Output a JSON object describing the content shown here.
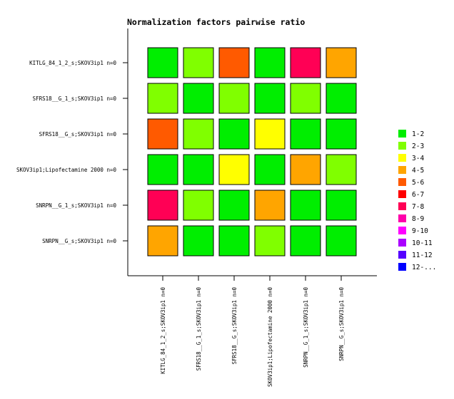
{
  "chart_data": {
    "type": "heatmap",
    "title": "Normalization factors pairwise ratio",
    "rows": [
      "KITLG_84_1_2_s;SKOV3ip1 n=0",
      "SFRS18__G_1_s;SKOV3ip1 n=0",
      "SFRS18__G_s;SKOV3ip1 n=0",
      "SKOV3ip1;Lipofectamine 2000 n=0",
      "SNRPN__G_1_s;SKOV3ip1 n=0",
      "SNRPN__G_s;SKOV3ip1 n=0"
    ],
    "columns": [
      "KITLG_84_1_2_s;SKOV3ip1 n=0",
      "SFRS18__G_1_s;SKOV3ip1 n=0",
      "SFRS18__G_s;SKOV3ip1 n=0",
      "SKOV3ip1;Lipofectamine 2000 n=0",
      "SNRPN__G_1_s;SKOV3ip1 n=0",
      "SNRPN__G_s;SKOV3ip1 n=0"
    ],
    "cells": [
      [
        "1-2",
        "2-3",
        "5-6",
        "1-2",
        "7-8",
        "4-5"
      ],
      [
        "2-3",
        "1-2",
        "2-3",
        "1-2",
        "2-3",
        "1-2"
      ],
      [
        "5-6",
        "2-3",
        "1-2",
        "3-4",
        "1-2",
        "1-2"
      ],
      [
        "1-2",
        "1-2",
        "3-4",
        "1-2",
        "4-5",
        "2-3"
      ],
      [
        "7-8",
        "2-3",
        "1-2",
        "4-5",
        "1-2",
        "1-2"
      ],
      [
        "4-5",
        "1-2",
        "1-2",
        "2-3",
        "1-2",
        "1-2"
      ]
    ],
    "legend": [
      {
        "label": "1-2",
        "color": "#00ee00"
      },
      {
        "label": "2-3",
        "color": "#80ff00"
      },
      {
        "label": "3-4",
        "color": "#ffff00"
      },
      {
        "label": "4-5",
        "color": "#ffa500"
      },
      {
        "label": "5-6",
        "color": "#ff5a00"
      },
      {
        "label": "6-7",
        "color": "#ff0000"
      },
      {
        "label": "7-8",
        "color": "#ff0055"
      },
      {
        "label": "8-9",
        "color": "#ff00aa"
      },
      {
        "label": "9-10",
        "color": "#ff00ff"
      },
      {
        "label": "10-11",
        "color": "#aa00ff"
      },
      {
        "label": "11-12",
        "color": "#5500ff"
      },
      {
        "label": "12-...",
        "color": "#0000ff"
      }
    ],
    "legend_position": "right",
    "grid": false
  }
}
